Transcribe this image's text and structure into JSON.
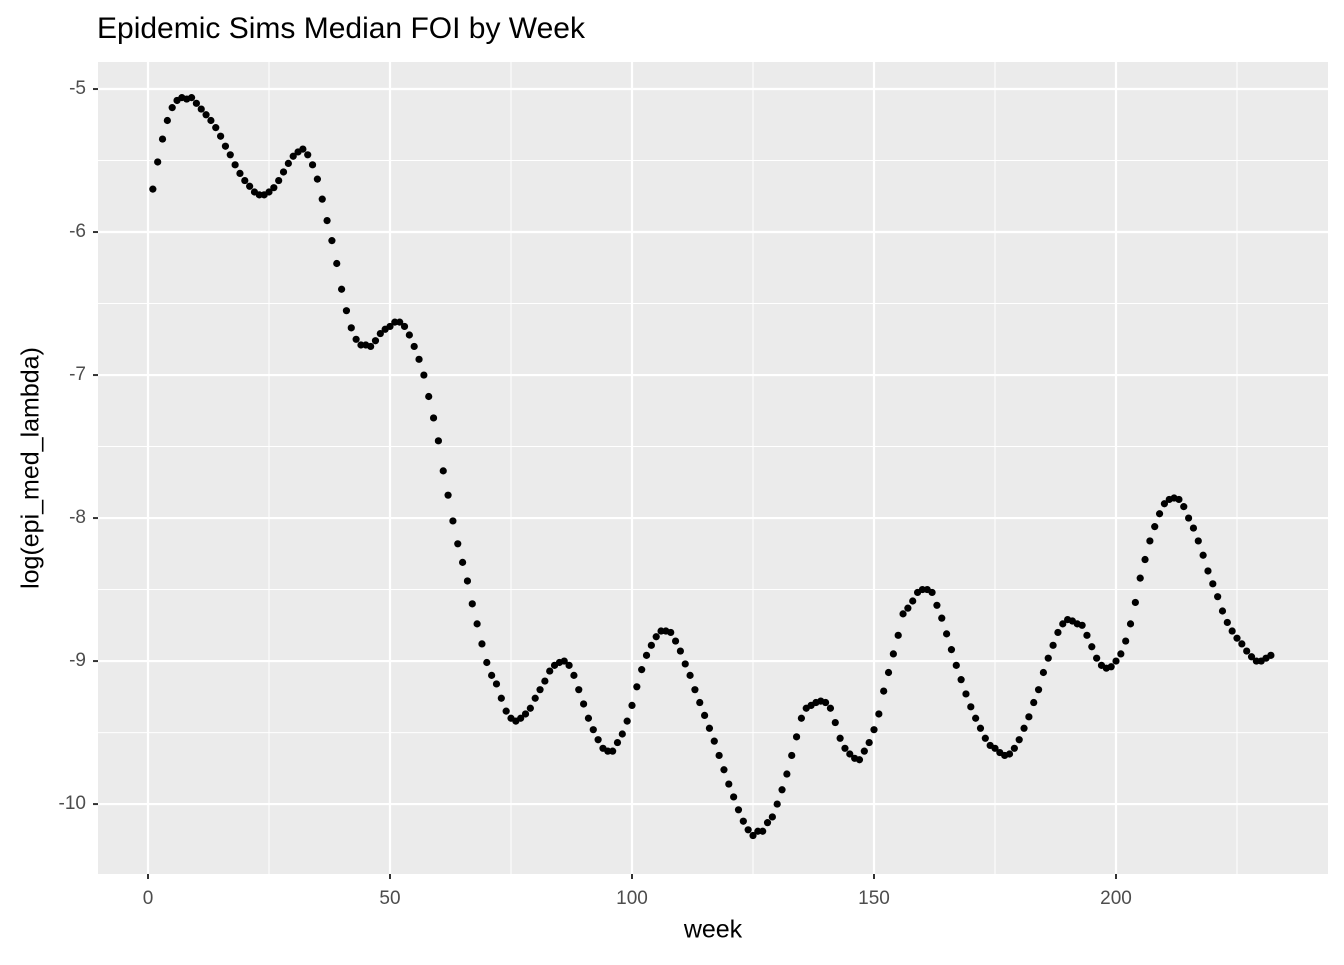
{
  "chart_data": {
    "type": "scatter",
    "title": "Epidemic Sims Median FOI by Week",
    "x_label": "week",
    "y_label": "log(epi_med_lambda)",
    "color": "#000000",
    "grid": true,
    "xlim": [
      -10.33,
      243.8
    ],
    "ylim": [
      -10.489,
      -4.811
    ],
    "xticks": [
      0,
      50,
      100,
      150,
      200
    ],
    "yticks": [
      -5,
      -6,
      -7,
      -8,
      -9,
      -10
    ],
    "x_minor_ticks": [
      25,
      75,
      125,
      175,
      225
    ],
    "y_minor_ticks": [
      -5.5,
      -6.5,
      -7.5,
      -8.5,
      -9.5
    ],
    "x": [
      1,
      2,
      3,
      4,
      5,
      6,
      7,
      8,
      9,
      10,
      11,
      12,
      13,
      14,
      15,
      16,
      17,
      18,
      19,
      20,
      21,
      22,
      23,
      24,
      25,
      26,
      27,
      28,
      29,
      30,
      31,
      32,
      33,
      34,
      35,
      36,
      37,
      38,
      39,
      40,
      41,
      42,
      43,
      44,
      45,
      46,
      47,
      48,
      49,
      50,
      51,
      52,
      53,
      54,
      55,
      56,
      57,
      58,
      59,
      60,
      61,
      62,
      63,
      64,
      65,
      66,
      67,
      68,
      69,
      70,
      71,
      72,
      73,
      74,
      75,
      76,
      77,
      78,
      79,
      80,
      81,
      82,
      83,
      84,
      85,
      86,
      87,
      88,
      89,
      90,
      91,
      92,
      93,
      94,
      95,
      96,
      97,
      98,
      99,
      100,
      101,
      102,
      103,
      104,
      105,
      106,
      107,
      108,
      109,
      110,
      111,
      112,
      113,
      114,
      115,
      116,
      117,
      118,
      119,
      120,
      121,
      122,
      123,
      124,
      125,
      126,
      127,
      128,
      129,
      130,
      131,
      132,
      133,
      134,
      135,
      136,
      137,
      138,
      139,
      140,
      141,
      142,
      143,
      144,
      145,
      146,
      147,
      148,
      149,
      150,
      151,
      152,
      153,
      154,
      155,
      156,
      157,
      158,
      159,
      160,
      161,
      162,
      163,
      164,
      165,
      166,
      167,
      168,
      169,
      170,
      171,
      172,
      173,
      174,
      175,
      176,
      177,
      178,
      179,
      180,
      181,
      182,
      183,
      184,
      185,
      186,
      187,
      188,
      189,
      190,
      191,
      192,
      193,
      194,
      195,
      196,
      197,
      198,
      199,
      200,
      201,
      202,
      203,
      204,
      205,
      206,
      207,
      208,
      209,
      210,
      211,
      212,
      213,
      214,
      215,
      216,
      217,
      218,
      219,
      220,
      221,
      222,
      223,
      224,
      225,
      226,
      227,
      228,
      229,
      230,
      231,
      232
    ],
    "values": [
      -5.7,
      -5.51,
      -5.35,
      -5.22,
      -5.13,
      -5.08,
      -5.06,
      -5.07,
      -5.06,
      -5.1,
      -5.14,
      -5.18,
      -5.22,
      -5.27,
      -5.33,
      -5.4,
      -5.46,
      -5.53,
      -5.59,
      -5.64,
      -5.68,
      -5.72,
      -5.74,
      -5.74,
      -5.72,
      -5.69,
      -5.64,
      -5.58,
      -5.52,
      -5.47,
      -5.44,
      -5.42,
      -5.46,
      -5.53,
      -5.63,
      -5.77,
      -5.92,
      -6.06,
      -6.22,
      -6.4,
      -6.55,
      -6.67,
      -6.75,
      -6.79,
      -6.79,
      -6.8,
      -6.76,
      -6.71,
      -6.68,
      -6.66,
      -6.63,
      -6.63,
      -6.66,
      -6.72,
      -6.8,
      -6.89,
      -7.0,
      -7.15,
      -7.3,
      -7.46,
      -7.67,
      -7.84,
      -8.02,
      -8.18,
      -8.31,
      -8.44,
      -8.6,
      -8.74,
      -8.88,
      -9.01,
      -9.1,
      -9.16,
      -9.26,
      -9.35,
      -9.4,
      -9.42,
      -9.4,
      -9.37,
      -9.33,
      -9.26,
      -9.2,
      -9.14,
      -9.07,
      -9.03,
      -9.01,
      -9.0,
      -9.03,
      -9.1,
      -9.2,
      -9.3,
      -9.4,
      -9.48,
      -9.55,
      -9.61,
      -9.63,
      -9.63,
      -9.57,
      -9.51,
      -9.42,
      -9.31,
      -9.18,
      -9.06,
      -8.96,
      -8.89,
      -8.83,
      -8.79,
      -8.79,
      -8.8,
      -8.86,
      -8.93,
      -9.02,
      -9.1,
      -9.2,
      -9.29,
      -9.38,
      -9.47,
      -9.56,
      -9.66,
      -9.76,
      -9.86,
      -9.95,
      -10.04,
      -10.12,
      -10.18,
      -10.22,
      -10.19,
      -10.19,
      -10.13,
      -10.09,
      -10.0,
      -9.9,
      -9.79,
      -9.66,
      -9.53,
      -9.4,
      -9.33,
      -9.31,
      -9.29,
      -9.28,
      -9.29,
      -9.33,
      -9.43,
      -9.54,
      -9.61,
      -9.65,
      -9.68,
      -9.69,
      -9.63,
      -9.57,
      -9.48,
      -9.37,
      -9.21,
      -9.08,
      -8.95,
      -8.82,
      -8.67,
      -8.63,
      -8.58,
      -8.52,
      -8.5,
      -8.5,
      -8.52,
      -8.61,
      -8.7,
      -8.81,
      -8.92,
      -9.03,
      -9.13,
      -9.23,
      -9.32,
      -9.4,
      -9.47,
      -9.54,
      -9.59,
      -9.61,
      -9.64,
      -9.66,
      -9.65,
      -9.61,
      -9.55,
      -9.47,
      -9.39,
      -9.29,
      -9.2,
      -9.08,
      -8.98,
      -8.89,
      -8.8,
      -8.74,
      -8.71,
      -8.72,
      -8.74,
      -8.75,
      -8.82,
      -8.9,
      -8.98,
      -9.03,
      -9.05,
      -9.04,
      -9.0,
      -8.95,
      -8.86,
      -8.74,
      -8.59,
      -8.42,
      -8.29,
      -8.16,
      -8.06,
      -7.97,
      -7.9,
      -7.87,
      -7.86,
      -7.87,
      -7.92,
      -8.0,
      -8.07,
      -8.16,
      -8.26,
      -8.37,
      -8.46,
      -8.55,
      -8.65,
      -8.73,
      -8.79,
      -8.84,
      -8.88,
      -8.93,
      -8.97,
      -9.0,
      -9.0,
      -8.98,
      -8.96
    ]
  }
}
